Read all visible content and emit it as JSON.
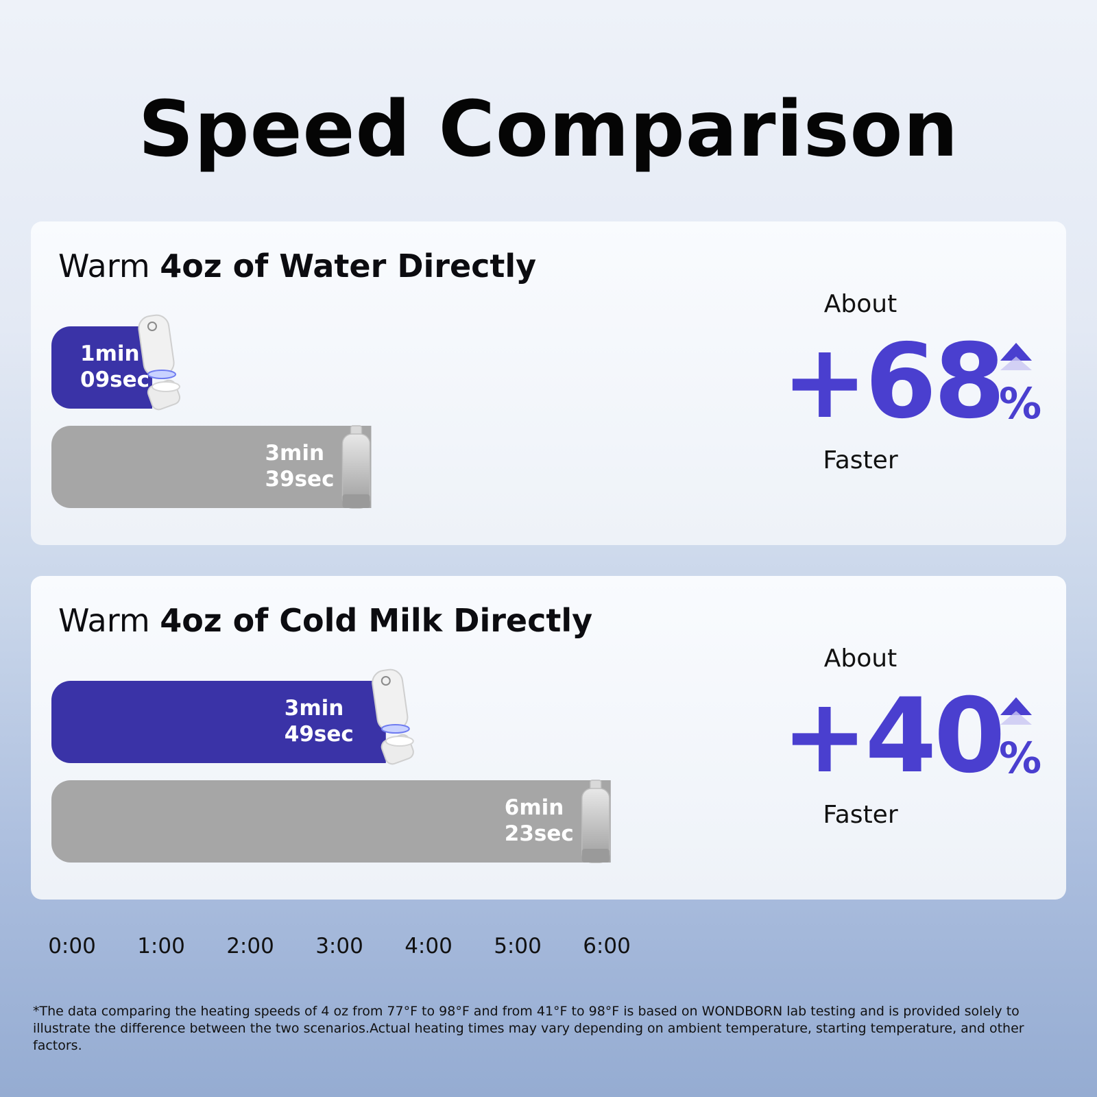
{
  "title": "Speed Comparison",
  "colors": {
    "accent": "#3a33a7",
    "comparison": "#a6a6a6",
    "stat": "#4a3fcf"
  },
  "chart_data": [
    {
      "type": "bar",
      "orientation": "horizontal",
      "title_parts": [
        "Warm ",
        "4oz of Water Directly"
      ],
      "xlim_seconds": [
        0,
        420
      ],
      "x_ticks": [
        "0:00",
        "1:00",
        "2:00",
        "3:00",
        "4:00",
        "5:00",
        "6:00"
      ],
      "bars": [
        {
          "seconds": 69,
          "label_min": "1min",
          "label_sec": "09sec",
          "color": "#3a33a7",
          "icon": "wondborn-portable-warmer-icon"
        },
        {
          "seconds": 219,
          "label_min": "3min",
          "label_sec": "39sec",
          "color": "#a6a6a6",
          "icon": "standard-bottle-warmer-icon"
        }
      ],
      "stat": {
        "about": "About",
        "value": "+68",
        "unit": "%",
        "faster": "Faster",
        "icon": "up-arrow-icon"
      }
    },
    {
      "type": "bar",
      "orientation": "horizontal",
      "title_parts": [
        "Warm ",
        "4oz of Cold Milk Directly"
      ],
      "xlim_seconds": [
        0,
        420
      ],
      "x_ticks": [
        "0:00",
        "1:00",
        "2:00",
        "3:00",
        "4:00",
        "5:00",
        "6:00"
      ],
      "bars": [
        {
          "seconds": 229,
          "label_min": "3min",
          "label_sec": "49sec",
          "color": "#3a33a7",
          "icon": "wondborn-portable-warmer-icon"
        },
        {
          "seconds": 383,
          "label_min": "6min",
          "label_sec": "23sec",
          "color": "#a6a6a6",
          "icon": "standard-bottle-warmer-icon"
        }
      ],
      "stat": {
        "about": "About",
        "value": "+40",
        "unit": "%",
        "faster": "Faster",
        "icon": "up-arrow-icon"
      }
    }
  ],
  "axis": {
    "ticks": [
      "0:00",
      "1:00",
      "2:00",
      "3:00",
      "4:00",
      "5:00",
      "6:00"
    ]
  },
  "footnote": "*The data comparing the heating speeds of 4 oz from 77°F to 98°F and from 41°F to 98°F is based on WONDBORN lab testing and is provided solely to illustrate the difference between the two scenarios.Actual heating times may vary depending on ambient temperature, starting temperature, and other factors."
}
